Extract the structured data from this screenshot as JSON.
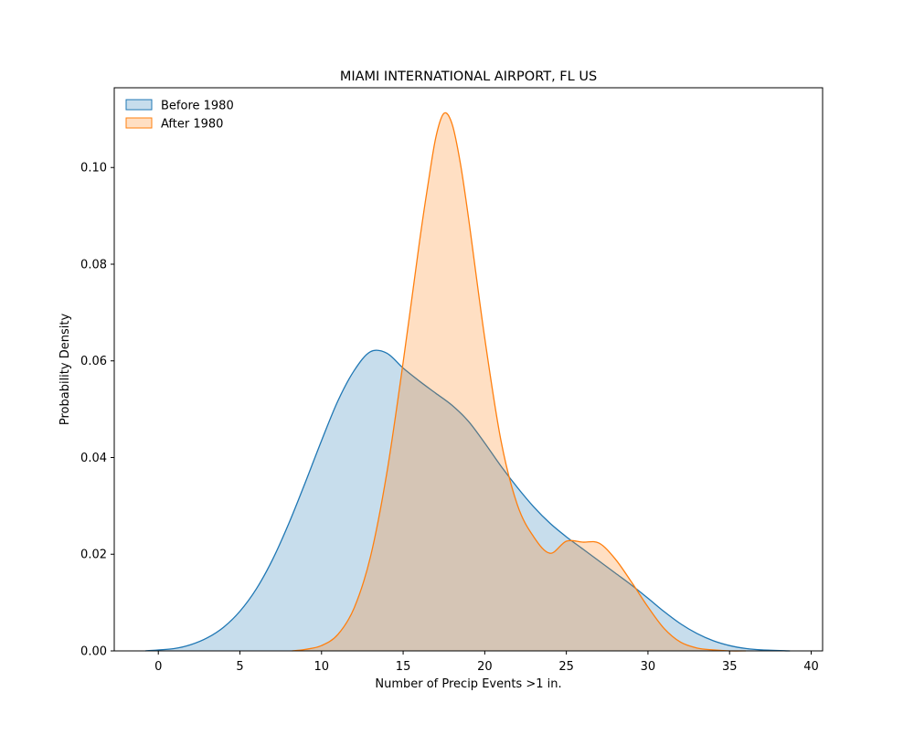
{
  "chart_data": {
    "type": "area",
    "title": "MIAMI INTERNATIONAL AIRPORT, FL US",
    "xlabel": "Number of Precip Events >1 in.",
    "ylabel": "Probability Density",
    "xlim": [
      -2.7,
      40.7
    ],
    "ylim": [
      0,
      0.1165
    ],
    "xticks": [
      0,
      5,
      10,
      15,
      20,
      25,
      30,
      35,
      40
    ],
    "yticks": [
      0.0,
      0.02,
      0.04,
      0.06,
      0.08,
      0.1
    ],
    "ytick_labels": [
      "0.00",
      "0.02",
      "0.04",
      "0.06",
      "0.08",
      "0.10"
    ],
    "grid": false,
    "legend_position": "top-left",
    "series": [
      {
        "name": "Before 1980",
        "color": "#1f77b4",
        "x": [
          -0.8,
          1,
          2,
          3,
          4,
          5,
          6,
          7,
          8,
          9,
          10,
          11,
          12,
          13,
          14,
          15,
          16,
          17,
          18,
          19,
          20,
          21,
          22,
          23,
          24,
          25,
          26,
          27,
          28,
          29,
          30,
          31,
          32,
          33,
          34,
          35,
          36,
          37,
          38.7
        ],
        "y": [
          0.0,
          0.0005,
          0.0013,
          0.0027,
          0.0049,
          0.0082,
          0.0128,
          0.0189,
          0.0264,
          0.0348,
          0.0435,
          0.0517,
          0.058,
          0.0619,
          0.0616,
          0.0585,
          0.0558,
          0.0533,
          0.0508,
          0.0475,
          0.043,
          0.0382,
          0.0338,
          0.0298,
          0.0264,
          0.0236,
          0.0211,
          0.0186,
          0.0161,
          0.0136,
          0.0109,
          0.0081,
          0.0056,
          0.0036,
          0.0021,
          0.0011,
          0.0005,
          0.0002,
          0.0
        ]
      },
      {
        "name": "After 1980",
        "color": "#ff7f0e",
        "x": [
          8.2,
          9,
          10,
          11,
          12,
          13,
          14,
          15,
          16,
          16.5,
          17,
          17.5,
          18,
          18.5,
          19,
          20,
          21,
          22,
          23,
          24,
          25,
          26,
          27,
          28,
          29,
          30,
          31,
          32,
          33,
          34,
          35,
          36
        ],
        "y": [
          0.0,
          0.0003,
          0.0011,
          0.0034,
          0.0089,
          0.0195,
          0.0368,
          0.0597,
          0.0846,
          0.096,
          0.1062,
          0.1112,
          0.109,
          0.101,
          0.0897,
          0.0647,
          0.0434,
          0.0302,
          0.0236,
          0.0202,
          0.0227,
          0.0225,
          0.0223,
          0.019,
          0.0142,
          0.0091,
          0.0046,
          0.0018,
          0.0006,
          0.0002,
          0.0,
          0.0
        ]
      }
    ]
  }
}
